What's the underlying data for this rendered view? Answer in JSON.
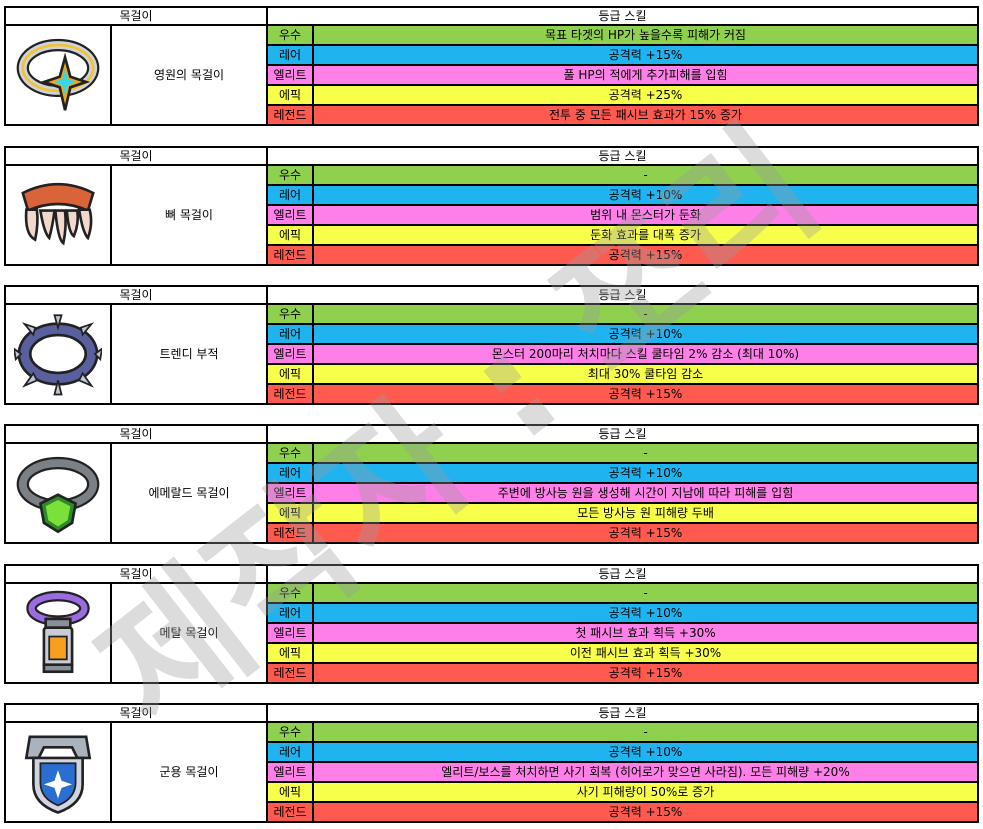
{
  "header": {
    "item_label": "목걸이",
    "skill_label": "등급 스킬"
  },
  "grades": [
    "우수",
    "레어",
    "엘리트",
    "에픽",
    "레전드"
  ],
  "grade_colors": [
    "#8fd14f",
    "#1fb3f0",
    "#ff7fe8",
    "#f7ff4a",
    "#ff5a50"
  ],
  "items": [
    {
      "name": "영원의 목걸이",
      "icon": "star-ring-necklace-icon",
      "skills": [
        "목표 타겟의 HP가 높을수록 피해가 커짐",
        "공격력 +15%",
        "풀 HP의 적에게 추가피해를 입힘",
        "공격력 +25%",
        "전투 중 모든 패시브 효과가 15% 증가"
      ]
    },
    {
      "name": "뼈 목걸이",
      "icon": "fang-necklace-icon",
      "skills": [
        "-",
        "공격력 +10%",
        "범위 내 몬스터가 둔화",
        "둔화 효과를 대폭 증가",
        "공격력 +15%"
      ]
    },
    {
      "name": "트렌디 부적",
      "icon": "spiked-collar-icon",
      "skills": [
        "-",
        "공격력 +10%",
        "몬스터 200마리 처치마다 스킬 쿨타임 2% 감소 (최대 10%)",
        "최대 30% 쿨타임 감소",
        "공격력 +15%"
      ]
    },
    {
      "name": "에메랄드 목걸이",
      "icon": "emerald-necklace-icon",
      "skills": [
        "-",
        "공격력 +10%",
        "주변에 방사능 원을 생성해 시간이 지남에 따라 피해를 입힘",
        "모든 방사능 원 피해량 두배",
        "공격력 +15%"
      ]
    },
    {
      "name": "메탈 목걸이",
      "icon": "metal-vial-necklace-icon",
      "skills": [
        "-",
        "공격력 +10%",
        "첫 패시브 효과 획득 +30%",
        "이전 패시브 효과 획득 +30%",
        "공격력 +15%"
      ]
    },
    {
      "name": "군용 목걸이",
      "icon": "military-tag-necklace-icon",
      "skills": [
        "-",
        "공격력 +10%",
        "엘리트/보스를 처치하면 사기 회복 (히어로가 맞으면 사라짐). 모든 피해량 +20%",
        "사기 피해량이 50%로 증가",
        "공격력 +15%"
      ]
    }
  ],
  "watermark": {
    "text": "제작자 : 쪼리"
  }
}
